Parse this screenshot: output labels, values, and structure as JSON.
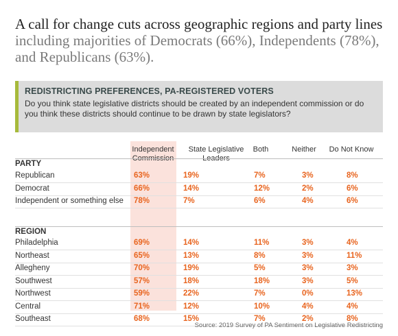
{
  "headline": {
    "line1": "A call for change cuts across geographic regions and party lines",
    "line2": "including majorities of Democrats (66%), Independents (78%),",
    "line3": "and Republicans (63%)."
  },
  "panel": {
    "title": "REDISTRICTING PREFERENCES, PA-REGISTERED VOTERS",
    "question": "Do you think state legislative districts should be created by an independent commission or do you think these districts should continue to be drawn by state legislators?"
  },
  "colors": {
    "accent_bar": "#a7ba3b",
    "highlight": "#fbe2dc",
    "value_text": "#e8641e"
  },
  "chart_data": {
    "type": "table",
    "columns": [
      "Independent Commission",
      "State Legislative Leaders",
      "Both",
      "Neither",
      "Do Not Know"
    ],
    "sections": [
      {
        "name": "PARTY",
        "rows": [
          {
            "label": "Republican",
            "values": [
              "63%",
              "19%",
              "7%",
              "3%",
              "8%"
            ]
          },
          {
            "label": "Democrat",
            "values": [
              "66%",
              "14%",
              "12%",
              "2%",
              "6%"
            ]
          },
          {
            "label": "Independent or something else",
            "values": [
              "78%",
              "7%",
              "6%",
              "4%",
              "6%"
            ]
          }
        ]
      },
      {
        "name": "REGION",
        "rows": [
          {
            "label": "Philadelphia",
            "values": [
              "69%",
              "14%",
              "11%",
              "3%",
              "4%"
            ]
          },
          {
            "label": "Northeast",
            "values": [
              "65%",
              "13%",
              "8%",
              "3%",
              "11%"
            ]
          },
          {
            "label": "Allegheny",
            "values": [
              "70%",
              "19%",
              "5%",
              "3%",
              "3%"
            ]
          },
          {
            "label": "Southwest",
            "values": [
              "57%",
              "18%",
              "18%",
              "3%",
              "5%"
            ]
          },
          {
            "label": "Northwest",
            "values": [
              "59%",
              "22%",
              "7%",
              "0%",
              "13%"
            ]
          },
          {
            "label": "Central",
            "values": [
              "71%",
              "12%",
              "10%",
              "4%",
              "4%"
            ]
          },
          {
            "label": "Southeast",
            "values": [
              "68%",
              "15%",
              "7%",
              "2%",
              "8%"
            ]
          }
        ]
      }
    ],
    "highlighted_column": "Independent Commission"
  },
  "source": "Source: 2019 Survey of PA Sentiment on Legislative Redistricting"
}
